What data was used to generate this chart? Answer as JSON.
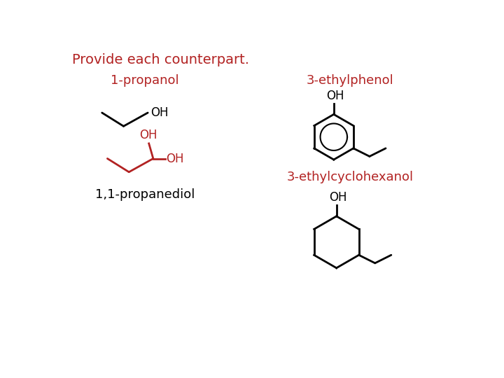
{
  "title": "Provide each counterpart.",
  "title_color": "#b22222",
  "title_fontsize": 14,
  "background_color": "#ffffff",
  "label_1propanol": "1-propanol",
  "label_3ethylphenol": "3-ethylphenol",
  "label_11propanediol": "1,1-propanediol",
  "label_3ethylcyclohexanol": "3-ethylcyclohexanol",
  "label_color_red": "#b22222",
  "label_color_black": "#000000",
  "molecule_color_black": "#000000",
  "molecule_color_red": "#b22222",
  "lw": 2.0
}
